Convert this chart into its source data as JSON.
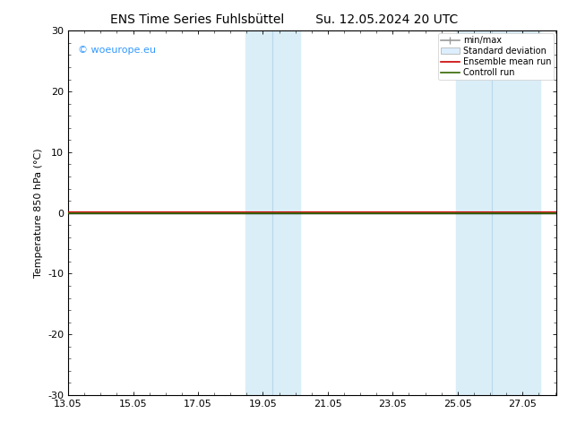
{
  "title_left": "ENS Time Series Fuhlsbüttel",
  "title_right": "Su. 12.05.2024 20 UTC",
  "ylabel": "Temperature 850 hPa (°C)",
  "xlim_start": 13.05,
  "xlim_end": 28.1,
  "ylim": [
    -30,
    30
  ],
  "yticks": [
    -30,
    -20,
    -10,
    0,
    10,
    20,
    30
  ],
  "xticks": [
    13.05,
    15.05,
    17.05,
    19.05,
    21.05,
    23.05,
    25.05,
    27.05
  ],
  "xtick_labels": [
    "13.05",
    "15.05",
    "17.05",
    "19.05",
    "21.05",
    "23.05",
    "25.05",
    "27.05"
  ],
  "watermark_text": "© woeurope.eu",
  "watermark_color": "#3399ff",
  "background_color": "#ffffff",
  "plot_bg_color": "#ffffff",
  "shaded_pairs": [
    {
      "x_start": 18.5,
      "x_end": 20.2
    },
    {
      "x_start": 25.0,
      "x_end": 27.6
    }
  ],
  "shaded_color": "#daeef7",
  "shaded_dividers": [
    19.35,
    26.1
  ],
  "hline_y": 0,
  "hline_color": "#000000",
  "ensemble_mean_color": "#cc0000",
  "control_run_color": "#336600",
  "minmax_color": "#999999",
  "stddev_color": "#ccddee",
  "legend_labels": [
    "min/max",
    "Standard deviation",
    "Ensemble mean run",
    "Controll run"
  ],
  "title_fontsize": 10,
  "axis_fontsize": 8,
  "tick_fontsize": 8
}
